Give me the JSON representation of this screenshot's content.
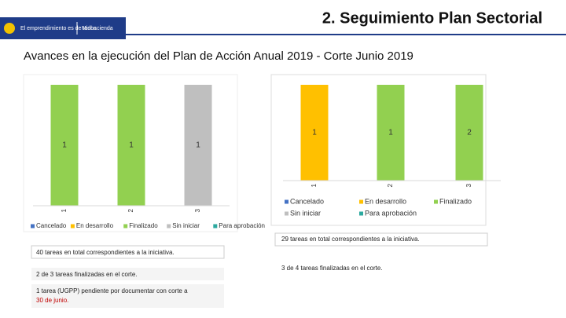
{
  "header": {
    "logo_text": "El emprendimiento es de todos",
    "logo_ministry": "Minhacienda",
    "title": "2. Seguimiento Plan Sectorial"
  },
  "subtitle": "Avances en la ejecución del Plan de Acción Anual 2019 - Corte Junio 2019",
  "chart_data": [
    {
      "type": "bar",
      "stacked": "percent",
      "legend": "bottom",
      "legend_columns": 5,
      "categories": [
        "1",
        "2",
        "3"
      ],
      "series": [
        {
          "name": "Cancelado",
          "color": "#4472c4",
          "values": [
            null,
            null,
            null
          ]
        },
        {
          "name": "En desarrollo",
          "color": "#ffc000",
          "values": [
            null,
            null,
            null
          ]
        },
        {
          "name": "Finalizado",
          "color": "#92d050",
          "values": [
            1,
            1,
            null
          ]
        },
        {
          "name": "Sin iniciar",
          "color": "#bfbfbf",
          "values": [
            null,
            null,
            1
          ]
        },
        {
          "name": "Para aprobación",
          "color": "#2ca99f",
          "values": [
            null,
            null,
            null
          ]
        }
      ]
    },
    {
      "type": "bar",
      "stacked": "percent",
      "legend": "bottom",
      "legend_columns": 3,
      "categories": [
        "1",
        "2",
        "3"
      ],
      "series": [
        {
          "name": "Cancelado",
          "color": "#4472c4",
          "values": [
            null,
            null,
            null
          ]
        },
        {
          "name": "En desarrollo",
          "color": "#ffc000",
          "values": [
            1,
            null,
            null
          ]
        },
        {
          "name": "Finalizado",
          "color": "#92d050",
          "values": [
            null,
            1,
            2
          ]
        },
        {
          "name": "Sin iniciar",
          "color": "#bfbfbf",
          "values": [
            null,
            null,
            null
          ]
        },
        {
          "name": "Para aprobación",
          "color": "#2ca99f",
          "values": [
            null,
            null,
            null
          ]
        }
      ]
    }
  ],
  "notes": {
    "left": [
      "40 tareas en total correspondientes a la iniciativa.",
      "2 de 3 tareas finalizadas en el corte.",
      "1 tarea (UGPP) pendiente por documentar con corte a"
    ],
    "left_highlight": "30 de junio.",
    "right": [
      "29 tareas en total correspondientes a la iniciativa.",
      "3 de 4 tareas finalizadas en el corte."
    ]
  }
}
